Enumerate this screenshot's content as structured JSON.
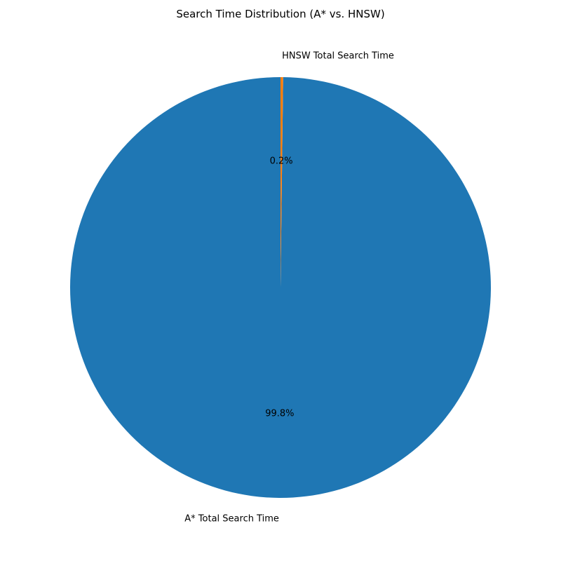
{
  "chart_data": {
    "type": "pie",
    "title": "Search Time Distribution (A* vs. HNSW)",
    "slices": [
      {
        "label": "A* Total Search Time",
        "percent": 99.8,
        "percent_label": "99.8%",
        "color": "#1f77b4"
      },
      {
        "label": "HNSW Total Search Time",
        "percent": 0.2,
        "percent_label": "0.2%",
        "color": "#ff7f0e"
      }
    ],
    "start_angle_deg": 90,
    "direction": "counterclockwise"
  }
}
